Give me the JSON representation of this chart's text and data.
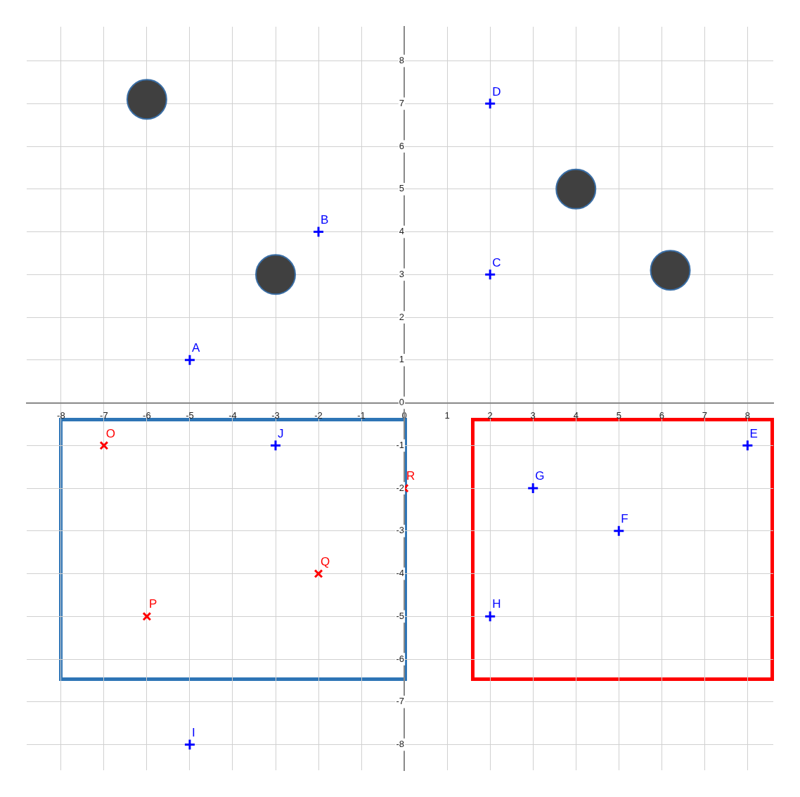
{
  "chart_data": {
    "type": "scatter",
    "xlim": [
      -8.8,
      8.6
    ],
    "ylim": [
      -8.6,
      8.8
    ],
    "xticks": [
      -8,
      -7,
      -6,
      -5,
      -4,
      -3,
      -2,
      -1,
      0,
      1,
      2,
      3,
      4,
      5,
      6,
      7,
      8
    ],
    "yticks": [
      -8,
      -7,
      -6,
      -5,
      -4,
      -3,
      -2,
      -1,
      0,
      1,
      2,
      3,
      4,
      5,
      6,
      7,
      8
    ],
    "grid": true,
    "series": [
      {
        "type": "scatter",
        "marker": "cross",
        "color": "#0000ff",
        "x": [
          -5,
          -2,
          2,
          2,
          8,
          5,
          3,
          2,
          -5,
          -3
        ],
        "values": [
          1,
          4,
          3,
          7,
          -1,
          -3,
          -2,
          -5,
          -8,
          -1
        ],
        "value_labels": [
          "A",
          "B",
          "C",
          "D",
          "E",
          "F",
          "G",
          "H",
          "I",
          "J"
        ]
      },
      {
        "type": "scatter",
        "marker": "x",
        "color": "#ff0000",
        "x": [
          -7,
          -6,
          -2,
          0
        ],
        "values": [
          -1,
          -5,
          -4,
          -2
        ],
        "value_labels": [
          "O",
          "P",
          "Q",
          "R"
        ]
      },
      {
        "type": "scatter",
        "marker": "circle",
        "color": "#404040",
        "x": [
          -6,
          -3,
          4,
          6.2
        ],
        "values": [
          7.1,
          3,
          5,
          3.1
        ]
      }
    ]
  }
}
